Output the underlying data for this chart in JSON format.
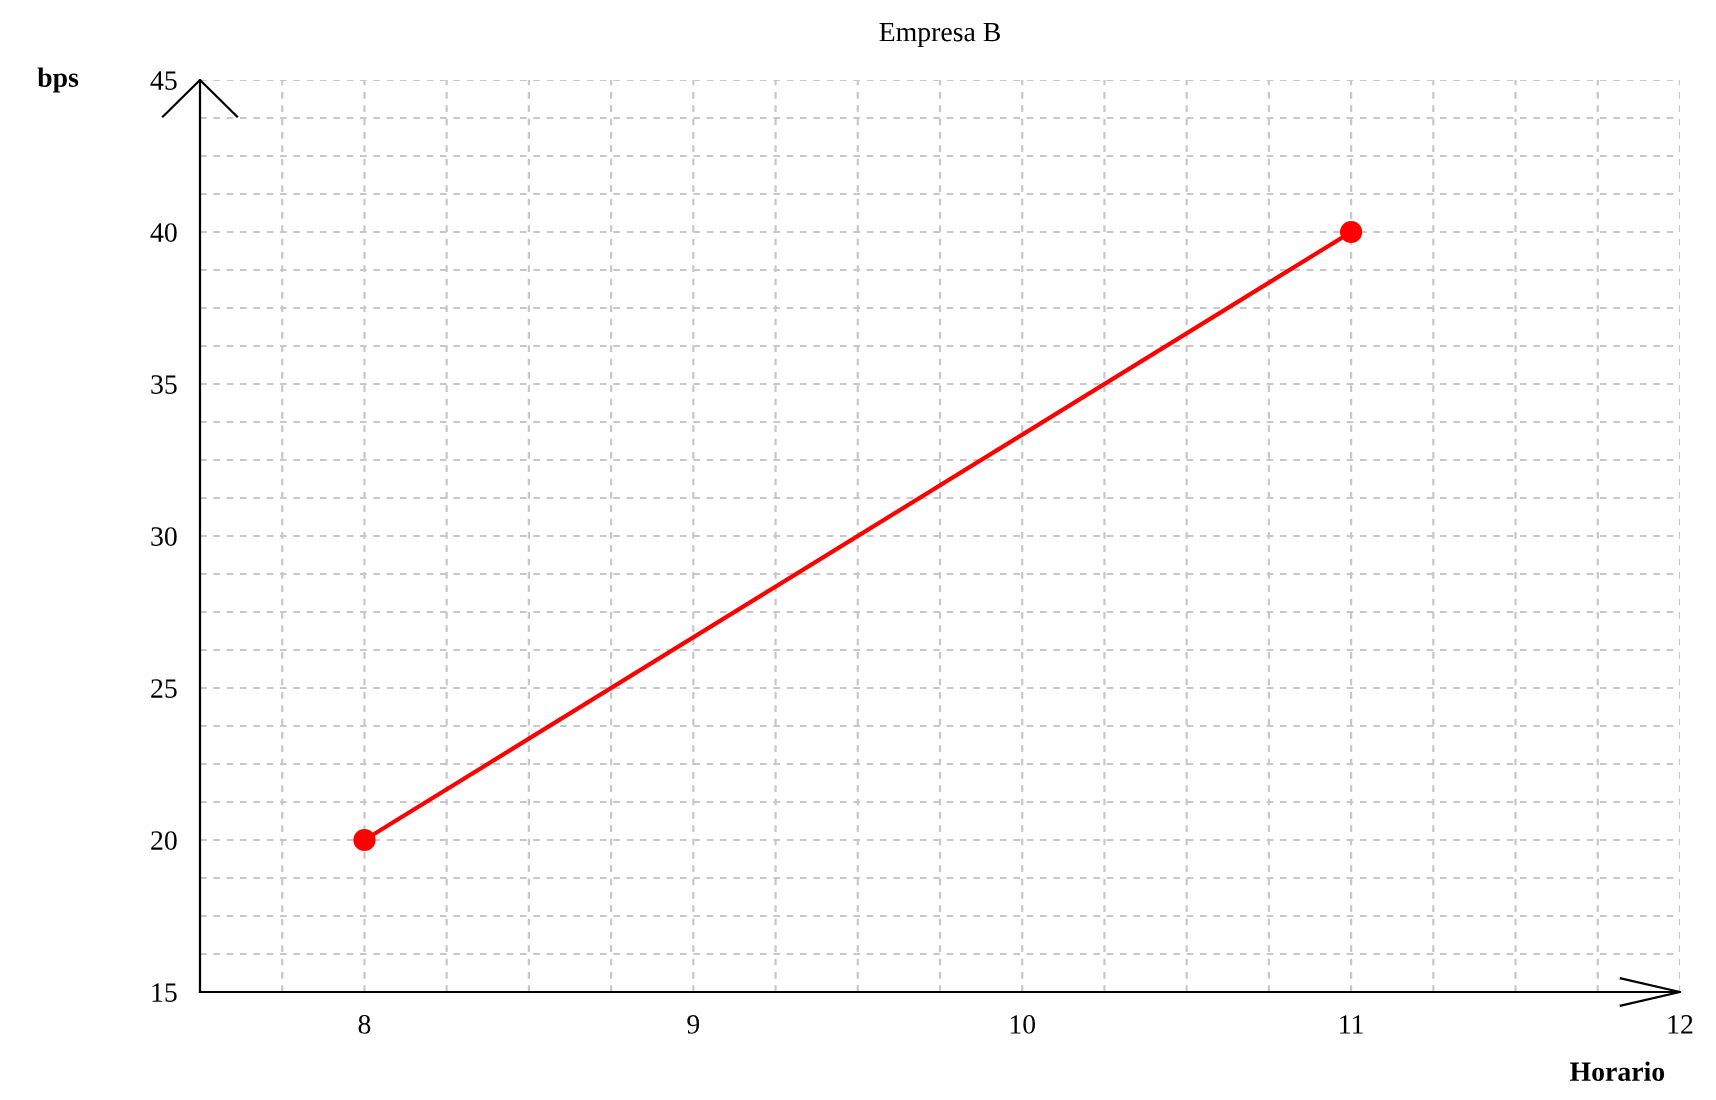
{
  "chart_data": {
    "type": "line",
    "title": "Empresa B",
    "xlabel": "Horario",
    "ylabel": "bps",
    "x": [
      8,
      11
    ],
    "series": [
      {
        "color": "#ff0000",
        "values": [
          20,
          40
        ]
      }
    ],
    "marker": "circle",
    "line_style": "solid",
    "grid": true,
    "xlim": [
      7.5,
      12
    ],
    "ylim": [
      15,
      45
    ],
    "xticks": [
      {
        "value": 7.75,
        "label": null
      },
      8,
      {
        "value": 8.25,
        "label": null
      },
      {
        "value": 8.5,
        "label": null
      },
      {
        "value": 8.75,
        "label": null
      },
      9,
      {
        "value": 9.25,
        "label": null
      },
      {
        "value": 9.5,
        "label": null
      },
      {
        "value": 9.75,
        "label": null
      },
      10,
      {
        "value": 10.25,
        "label": null
      },
      {
        "value": 10.5,
        "label": null
      },
      {
        "value": 10.75,
        "label": null
      },
      11,
      {
        "value": 11.25,
        "label": null
      },
      {
        "value": 11.5,
        "label": null
      },
      {
        "value": 11.75,
        "label": null
      },
      12
    ],
    "yticks": [
      15,
      {
        "value": 16.25,
        "label": null
      },
      {
        "value": 17.5,
        "label": null
      },
      {
        "value": 18.75,
        "label": null
      },
      20,
      {
        "value": 21.25,
        "label": null
      },
      {
        "value": 22.5,
        "label": null
      },
      {
        "value": 23.75,
        "label": null
      },
      25,
      {
        "value": 26.25,
        "label": null
      },
      {
        "value": 27.5,
        "label": null
      },
      {
        "value": 28.75,
        "label": null
      },
      30,
      {
        "value": 31.25,
        "label": null
      },
      {
        "value": 32.5,
        "label": null
      },
      {
        "value": 33.75,
        "label": null
      },
      35,
      {
        "value": 36.25,
        "label": null
      },
      {
        "value": 37.5,
        "label": null
      },
      {
        "value": 38.75,
        "label": null
      },
      40,
      {
        "value": 41.25,
        "label": null
      },
      {
        "value": 42.5,
        "label": null
      },
      {
        "value": 43.75,
        "label": null
      },
      45
    ]
  }
}
